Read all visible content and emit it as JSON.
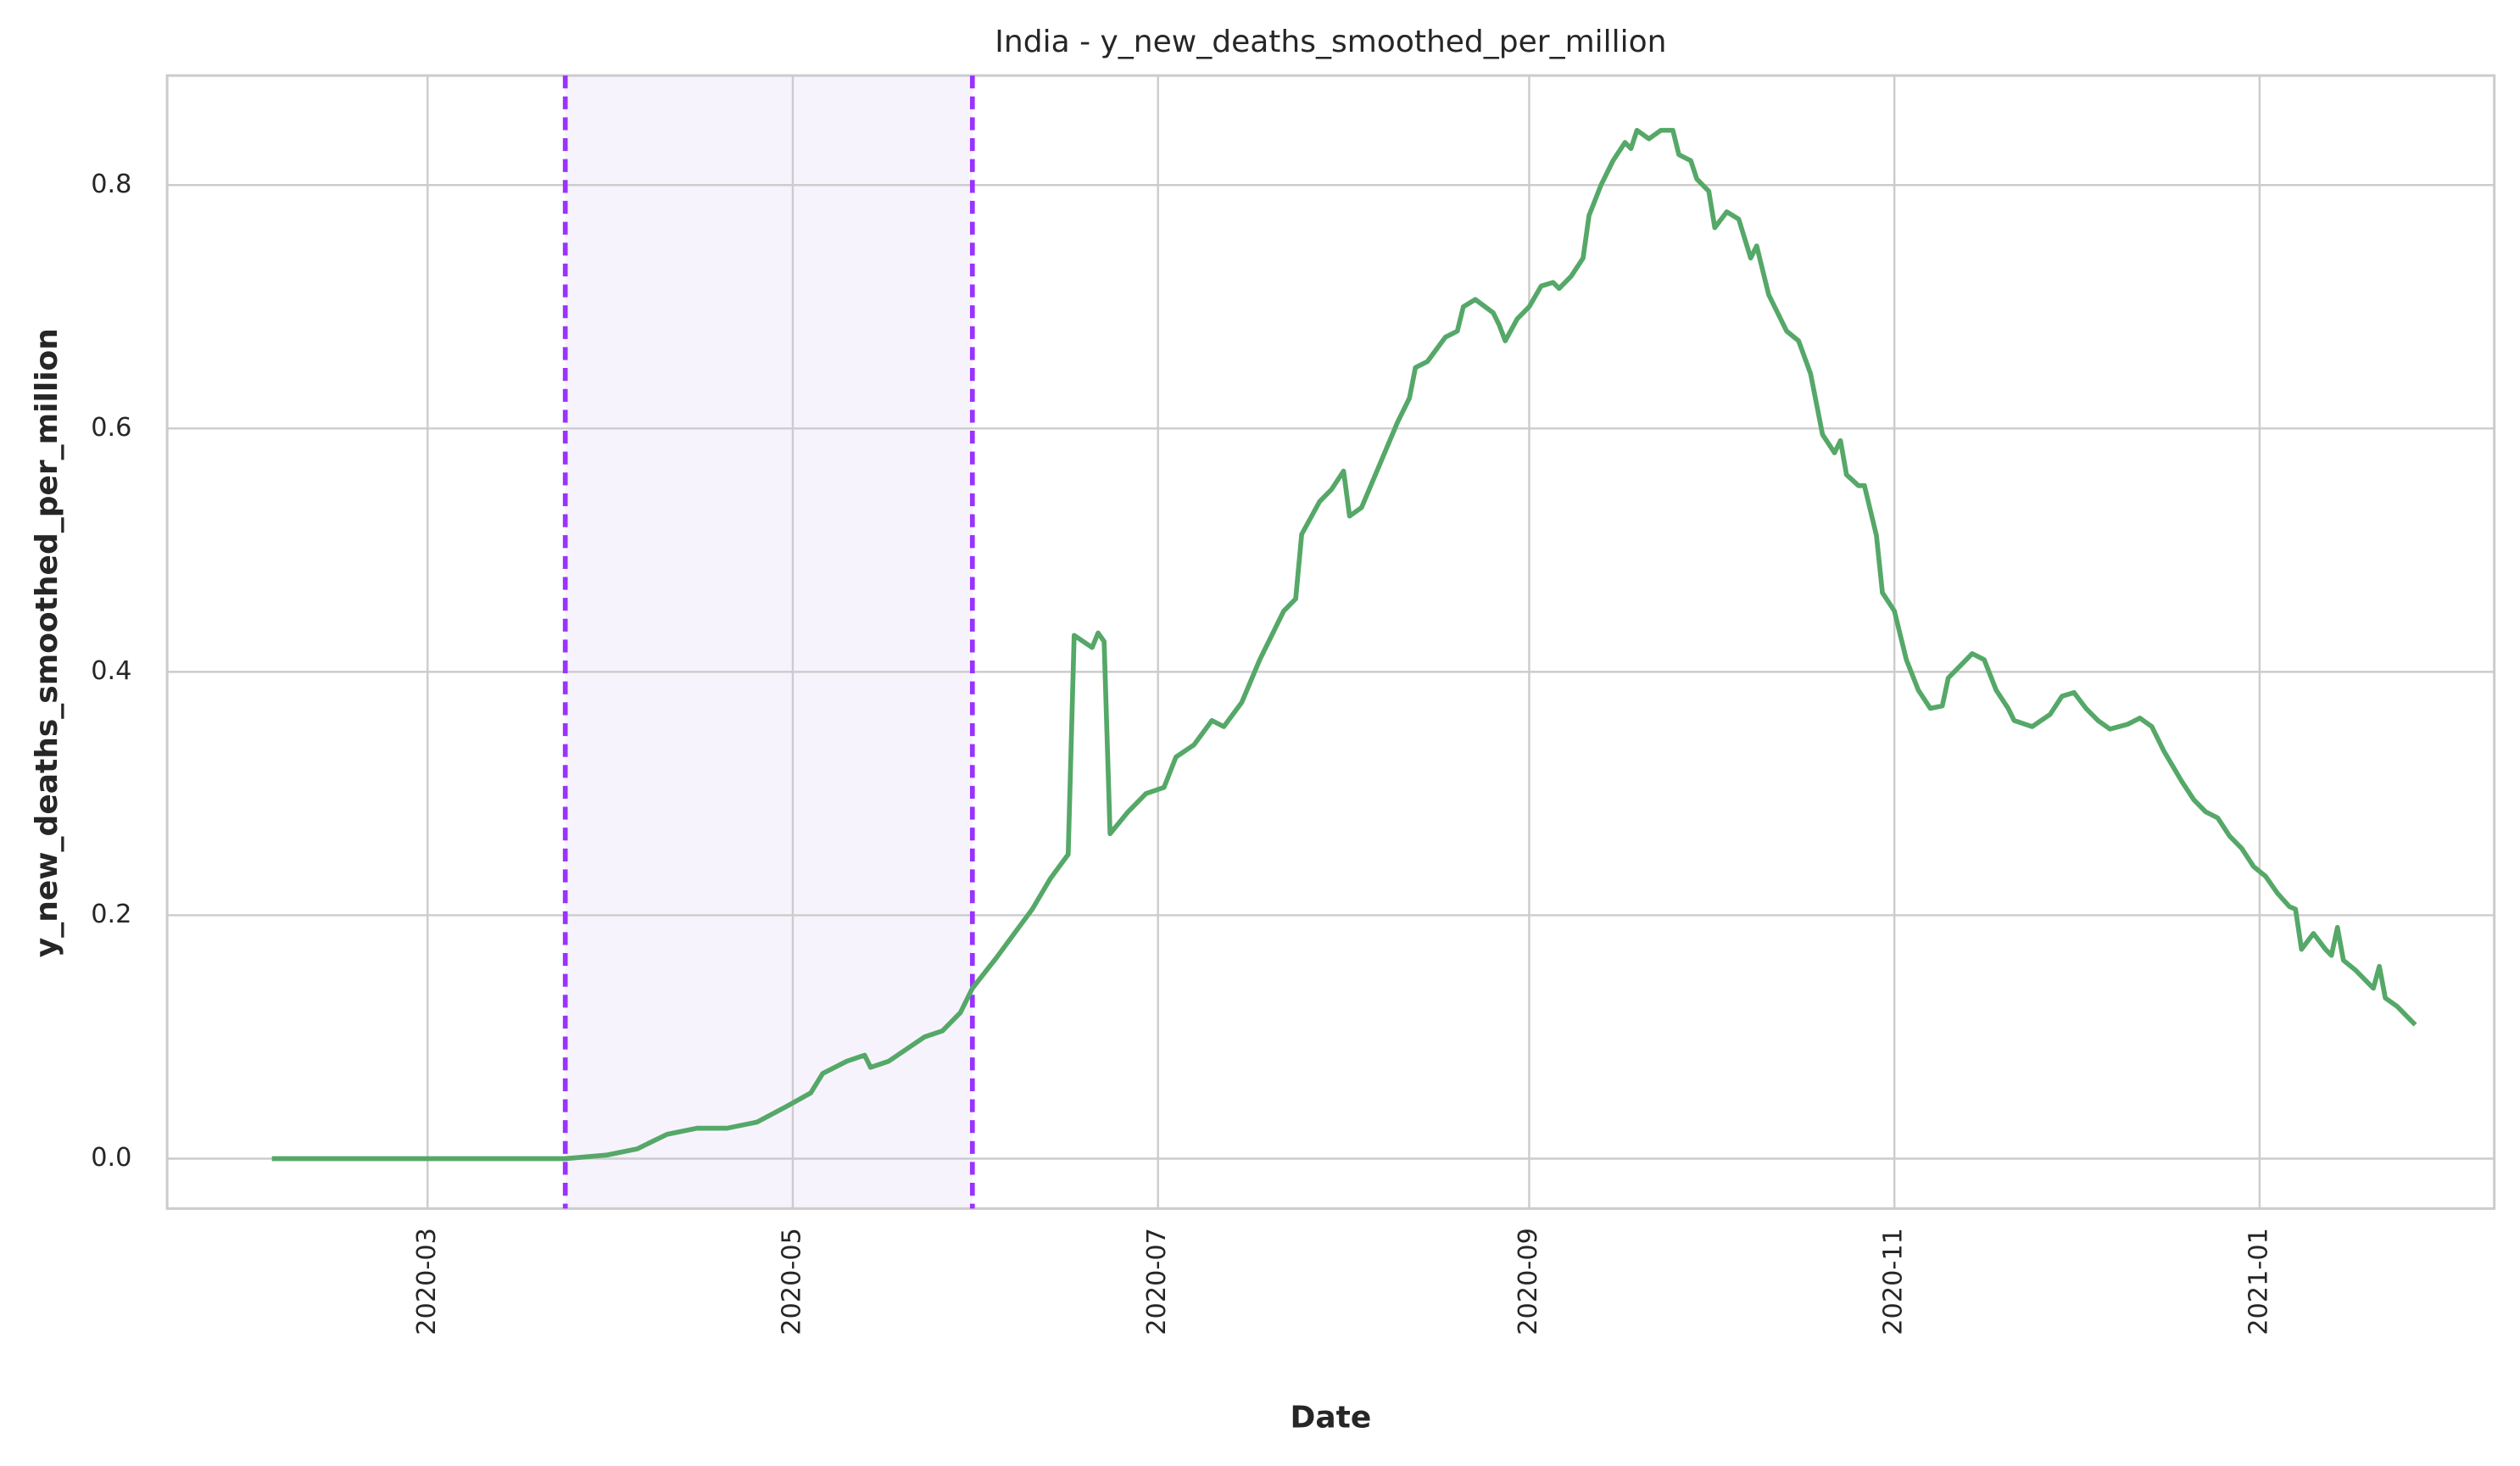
{
  "chart_data": {
    "type": "line",
    "title": "India - y_new_deaths_smoothed_per_million",
    "x_label": "Date",
    "y_label": "y_new_deaths_smoothed_per_million",
    "x": [
      34,
      83,
      90,
      95,
      100,
      105,
      110,
      115,
      120,
      124,
      126,
      130,
      133,
      134,
      137,
      140,
      143,
      146,
      149,
      151,
      155,
      158,
      161,
      164,
      167,
      168,
      171,
      172,
      173,
      174,
      177,
      180,
      183,
      185,
      188,
      191,
      193,
      196,
      199,
      201,
      203,
      205,
      206,
      209,
      211,
      213,
      214,
      216,
      219,
      222,
      224,
      225,
      227,
      230,
      232,
      233,
      235,
      238,
      239,
      240,
      242,
      244,
      246,
      248,
      249,
      251,
      253,
      254,
      256,
      258,
      260,
      261,
      262,
      264,
      266,
      268,
      269,
      271,
      272,
      274,
      275,
      277,
      279,
      281,
      282,
      284,
      287,
      289,
      291,
      293,
      295,
      296,
      297,
      299,
      300,
      302,
      303,
      305,
      307,
      309,
      311,
      313,
      314,
      316,
      318,
      320,
      322,
      324,
      325,
      328,
      331,
      333,
      335,
      337,
      339,
      341,
      344,
      346,
      348,
      350,
      353,
      355,
      357,
      359,
      361,
      363,
      365,
      367,
      369,
      371,
      372,
      373,
      375,
      377,
      378,
      379,
      380,
      382,
      384,
      385,
      386,
      387,
      389,
      391,
      392
    ],
    "values": [
      0,
      0,
      0.003,
      0.008,
      0.02,
      0.025,
      0.025,
      0.03,
      0.043,
      0.054,
      0.07,
      0.08,
      0.085,
      0.075,
      0.08,
      0.09,
      0.1,
      0.105,
      0.12,
      0.14,
      0.165,
      0.185,
      0.205,
      0.23,
      0.25,
      0.43,
      0.42,
      0.432,
      0.425,
      0.267,
      0.285,
      0.3,
      0.305,
      0.33,
      0.34,
      0.36,
      0.355,
      0.375,
      0.41,
      0.43,
      0.45,
      0.46,
      0.513,
      0.54,
      0.55,
      0.565,
      0.528,
      0.535,
      0.57,
      0.605,
      0.625,
      0.65,
      0.655,
      0.675,
      0.68,
      0.7,
      0.706,
      0.695,
      0.685,
      0.672,
      0.69,
      0.7,
      0.717,
      0.72,
      0.715,
      0.725,
      0.74,
      0.775,
      0.8,
      0.82,
      0.835,
      0.83,
      0.845,
      0.838,
      0.845,
      0.845,
      0.825,
      0.82,
      0.805,
      0.795,
      0.765,
      0.778,
      0.772,
      0.74,
      0.75,
      0.71,
      0.68,
      0.672,
      0.645,
      0.595,
      0.58,
      0.59,
      0.562,
      0.553,
      0.553,
      0.512,
      0.465,
      0.45,
      0.41,
      0.385,
      0.37,
      0.372,
      0.395,
      0.405,
      0.415,
      0.41,
      0.385,
      0.37,
      0.36,
      0.355,
      0.365,
      0.38,
      0.383,
      0.37,
      0.36,
      0.353,
      0.357,
      0.362,
      0.355,
      0.335,
      0.31,
      0.295,
      0.285,
      0.28,
      0.265,
      0.255,
      0.24,
      0.232,
      0.218,
      0.207,
      0.205,
      0.172,
      0.185,
      0.172,
      0.167,
      0.19,
      0.163,
      0.155,
      0.145,
      0.14,
      0.158,
      0.132,
      0.125,
      0.115,
      0.11
    ],
    "color": "#55a868",
    "xlim": [
      16.5,
      405.2
    ],
    "xticks": [
      {
        "value": 60,
        "label": "2020-03"
      },
      {
        "value": 121,
        "label": "2020-05"
      },
      {
        "value": 182,
        "label": "2020-07"
      },
      {
        "value": 244,
        "label": "2020-09"
      },
      {
        "value": 305,
        "label": "2020-11"
      },
      {
        "value": 366,
        "label": "2021-01"
      }
    ],
    "ylim": [
      -0.041,
      0.89
    ],
    "yticks": [
      {
        "value": 0,
        "label": "0.0"
      },
      {
        "value": 0.2,
        "label": "0.2"
      },
      {
        "value": 0.4,
        "label": "0.4"
      },
      {
        "value": 0.6,
        "label": "0.6"
      },
      {
        "value": 0.8,
        "label": "0.8"
      }
    ],
    "grid": true,
    "vlines": [
      83,
      151
    ],
    "vline_color": "#9933ff",
    "span_color": "#f7f3fd"
  }
}
